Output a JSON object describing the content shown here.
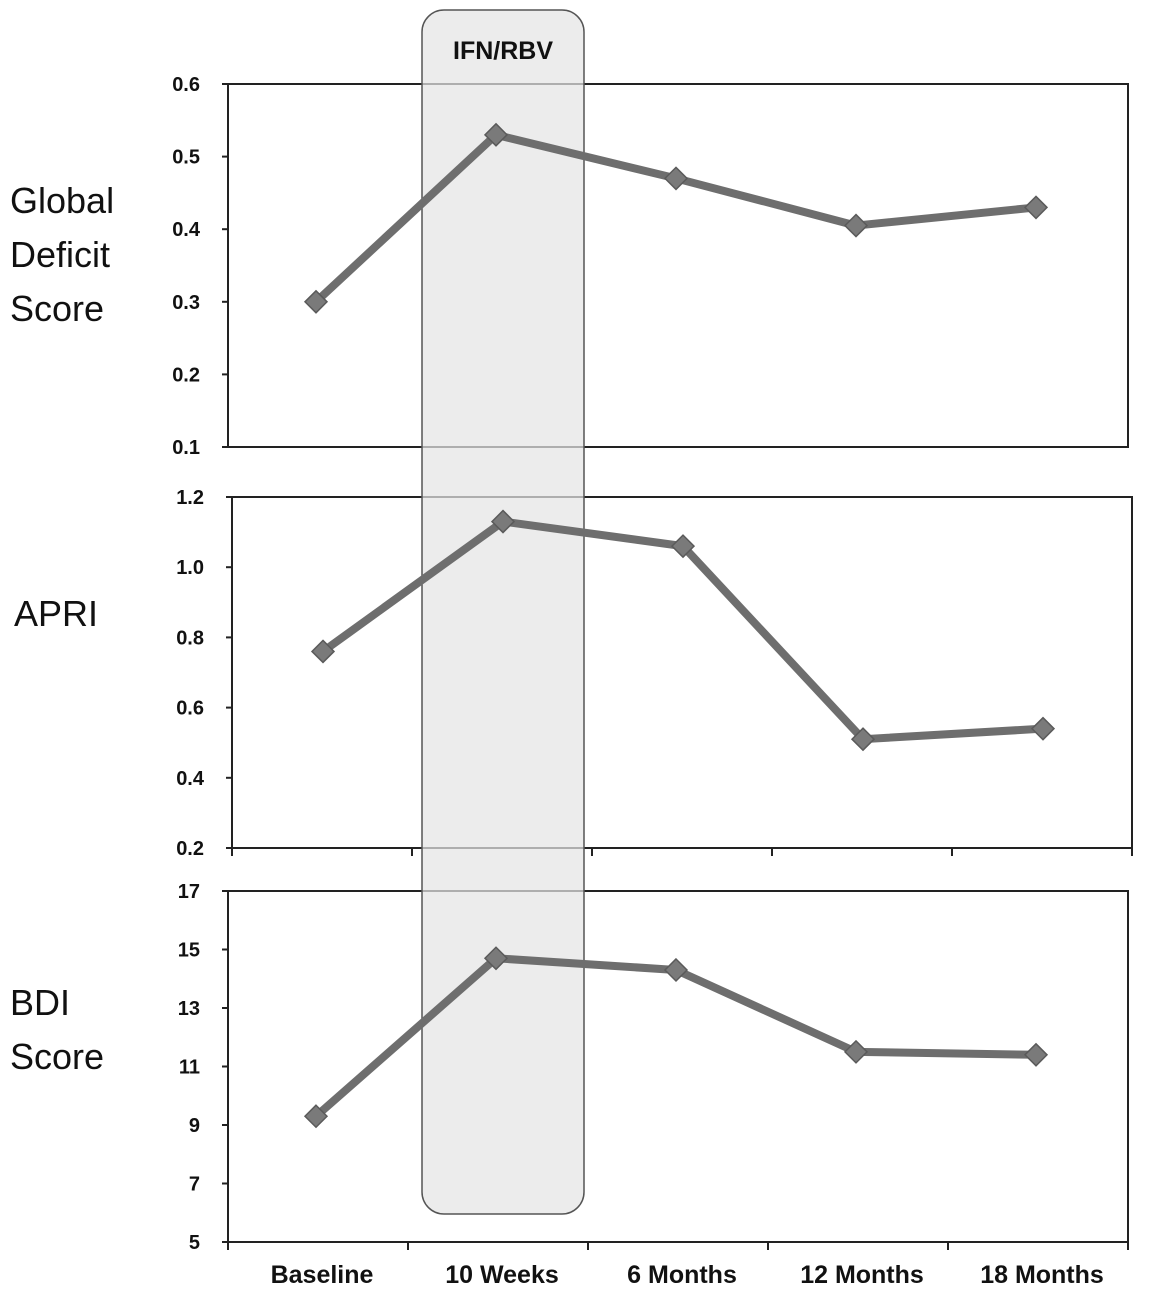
{
  "chart_data": {
    "type": "line",
    "categories": [
      "Baseline",
      "10 Weeks",
      "6 Months",
      "12 Months",
      "18 Months"
    ],
    "shaded_region": {
      "label": "IFN/RBV",
      "category": "10 Weeks"
    },
    "panels": [
      {
        "ylabel": [
          "Global",
          "Deficit",
          "Score"
        ],
        "ylim": [
          0.1,
          0.6
        ],
        "yticks": [
          "0.1",
          "0.2",
          "0.3",
          "0.4",
          "0.5",
          "0.6"
        ],
        "values": [
          0.3,
          0.53,
          0.47,
          0.405,
          0.43
        ]
      },
      {
        "ylabel": [
          "APRI"
        ],
        "ylim": [
          0.2,
          1.2
        ],
        "yticks": [
          "0.2",
          "0.4",
          "0.6",
          "0.8",
          "1.0",
          "1.2"
        ],
        "values": [
          0.76,
          1.13,
          1.06,
          0.51,
          0.54
        ]
      },
      {
        "ylabel": [
          "BDI",
          "Score"
        ],
        "ylim": [
          5,
          17
        ],
        "yticks": [
          "5",
          "7",
          "9",
          "11",
          "13",
          "15",
          "17"
        ],
        "values": [
          9.3,
          14.7,
          14.3,
          11.5,
          11.4
        ]
      }
    ],
    "colors": {
      "line": "#6e6e6e",
      "marker": "#7a7a7a",
      "band_fill": "#e4e4e4",
      "band_stroke": "#555555"
    }
  }
}
